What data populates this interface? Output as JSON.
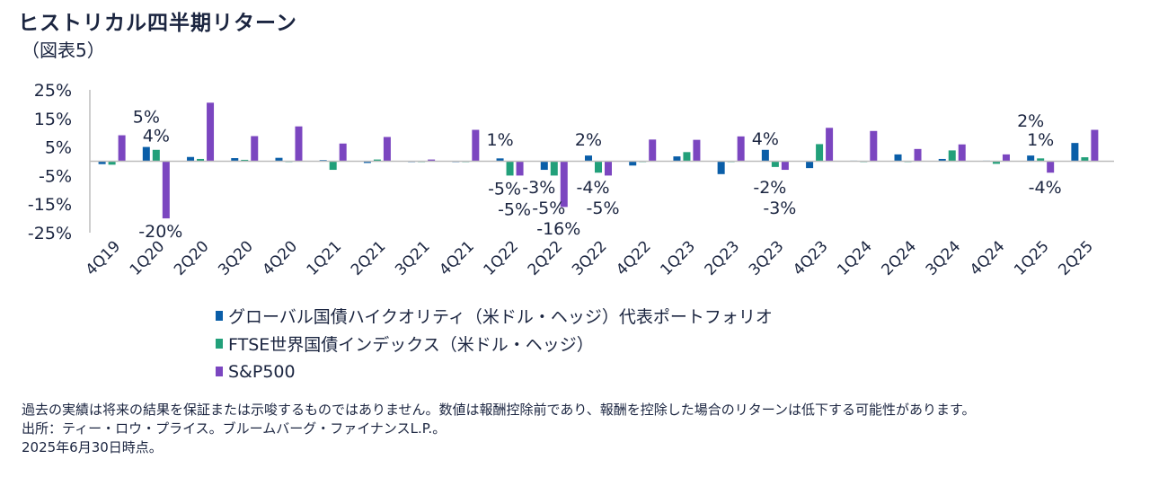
{
  "header": {
    "title": "ヒストリカル四半期リターン",
    "subtitle": "（図表5）"
  },
  "chart_data": {
    "type": "bar",
    "title": "",
    "xlabel": "",
    "ylabel": "",
    "ylim": [
      -25,
      25
    ],
    "yticks": [
      25,
      15,
      5,
      -5,
      -15,
      -25
    ],
    "ytick_labels": [
      "25%",
      "15%",
      "5%",
      "-5%",
      "-15%",
      "-25%"
    ],
    "grid": false,
    "legend_placement": "bottom",
    "categories": [
      "4Q19",
      "1Q20",
      "2Q20",
      "3Q20",
      "4Q20",
      "1Q21",
      "2Q21",
      "3Q21",
      "4Q21",
      "1Q22",
      "2Q22",
      "3Q22",
      "4Q22",
      "1Q23",
      "2Q23",
      "3Q23",
      "4Q23",
      "1Q24",
      "2Q24",
      "3Q24",
      "4Q24",
      "1Q25",
      "2Q25"
    ],
    "series": [
      {
        "name": "グローバル国債ハイクオリティ（米ドル・ヘッジ）代表ポートフォリオ",
        "color": "#0a5ea8",
        "values": [
          -1.0,
          5,
          1.5,
          1.1,
          1.2,
          0.4,
          -0.6,
          0.0,
          0.0,
          1,
          -3,
          2,
          -1.5,
          1.7,
          -4.5,
          4,
          -2.4,
          0.2,
          2.4,
          0.8,
          0.2,
          2,
          6.4
        ]
      },
      {
        "name": "FTSE世界国債インデックス（米ドル・ヘッジ）",
        "color": "#22a07a",
        "values": [
          -1.2,
          4,
          0.8,
          0.5,
          0.0,
          -3.0,
          0.6,
          0.0,
          0.0,
          -5,
          -5,
          -4,
          -0.2,
          3.2,
          -0.1,
          -2,
          6,
          0.0,
          0.0,
          3.8,
          -0.9,
          1,
          1.4
        ]
      },
      {
        "name": "S&P500",
        "color": "#7b46c0",
        "values": [
          9.1,
          -20,
          20.5,
          8.8,
          12.2,
          6.2,
          8.5,
          0.6,
          11.0,
          -5,
          -16,
          -5,
          7.6,
          7.5,
          8.7,
          -3,
          11.7,
          10.6,
          4.3,
          5.9,
          2.4,
          -4,
          11.0
        ]
      }
    ],
    "data_labels": [
      {
        "category": "1Q20",
        "series": 0,
        "text": "5%"
      },
      {
        "category": "1Q20",
        "series": 1,
        "text": "4%"
      },
      {
        "category": "1Q20",
        "series": 2,
        "text": "-20%"
      },
      {
        "category": "1Q22",
        "series": 0,
        "text": "1%"
      },
      {
        "category": "1Q22",
        "series": 1,
        "text": "-5%"
      },
      {
        "category": "1Q22",
        "series": 2,
        "text": "-5%"
      },
      {
        "category": "2Q22",
        "series": 0,
        "text": "-3%"
      },
      {
        "category": "2Q22",
        "series": 1,
        "text": "-5%"
      },
      {
        "category": "2Q22",
        "series": 2,
        "text": "-16%"
      },
      {
        "category": "3Q22",
        "series": 0,
        "text": "2%"
      },
      {
        "category": "3Q22",
        "series": 1,
        "text": "-4%"
      },
      {
        "category": "3Q22",
        "series": 2,
        "text": "-5%"
      },
      {
        "category": "3Q23",
        "series": 0,
        "text": "4%"
      },
      {
        "category": "3Q23",
        "series": 1,
        "text": "-2%"
      },
      {
        "category": "3Q23",
        "series": 2,
        "text": "-3%"
      },
      {
        "category": "1Q25",
        "series": 0,
        "text": "2%"
      },
      {
        "category": "1Q25",
        "series": 1,
        "text": "1%"
      },
      {
        "category": "1Q25",
        "series": 2,
        "text": "-4%"
      }
    ]
  },
  "footer": {
    "note": "過去の実績は将来の結果を保証または示唆するものではありません。数値は報酬控除前であり、報酬を控除した場合のリターンは低下する可能性があります。",
    "source": "出所：ティー・ロウ・プライス。ブルームバーグ・ファイナンスL.P.。",
    "as_of": "2025年6月30日時点。"
  }
}
